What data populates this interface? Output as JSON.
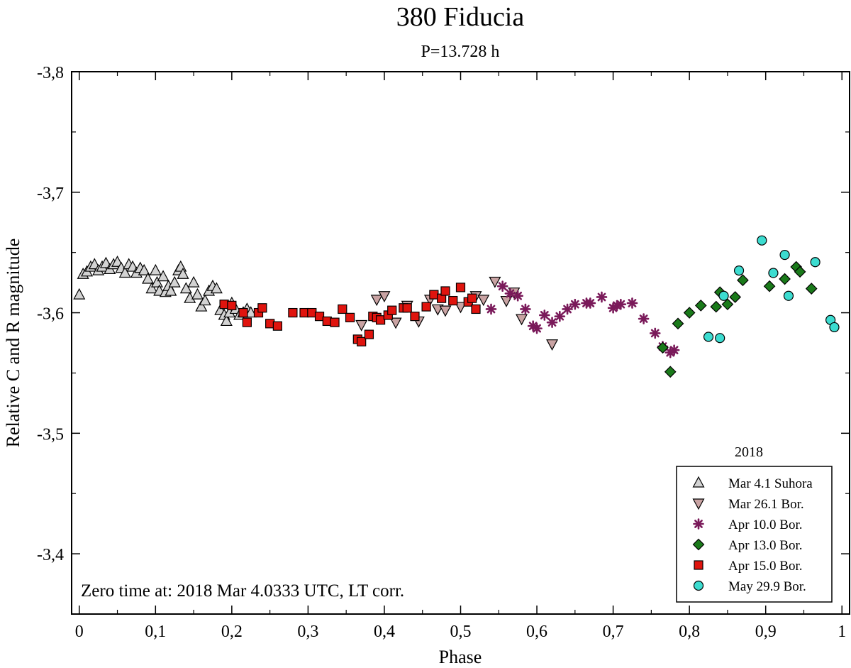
{
  "chart_data": {
    "type": "scatter",
    "title": "380 Fiducia",
    "subtitle": "P=13.728 h",
    "xlabel": "Phase",
    "ylabel": "Relative C and R magnitude",
    "xlim": [
      -0.01,
      1.01
    ],
    "ylim": [
      -3.35,
      -3.8
    ],
    "xticks": [
      0,
      0.1,
      0.2,
      0.3,
      0.4,
      0.5,
      0.6,
      0.7,
      0.8,
      0.9,
      1
    ],
    "xtick_labels": [
      "0",
      "0,1",
      "0,2",
      "0,3",
      "0,4",
      "0,5",
      "0,6",
      "0,7",
      "0,8",
      "0,9",
      "1"
    ],
    "yticks": [
      -3.8,
      -3.7,
      -3.5,
      -3.4
    ],
    "ytick_labels": [
      "-3,8",
      "-3,7",
      "-3,5",
      "-3,4"
    ],
    "ytick_special_label": "-3,6",
    "annotation": "Zero time at: 2018 Mar 4.0333 UTC, LT corr.",
    "legend_title": "2018",
    "legend_position": "bottom-right",
    "series": [
      {
        "name": "Mar 4.1 Suhora",
        "marker": "triangle-up",
        "color": "#d3d3d3",
        "x": [
          0.0,
          0.005,
          0.01,
          0.015,
          0.02,
          0.025,
          0.03,
          0.035,
          0.04,
          0.045,
          0.05,
          0.055,
          0.06,
          0.065,
          0.07,
          0.075,
          0.08,
          0.085,
          0.09,
          0.095,
          0.1,
          0.102,
          0.105,
          0.11,
          0.113,
          0.117,
          0.12,
          0.125,
          0.13,
          0.133,
          0.136,
          0.14,
          0.145,
          0.15,
          0.155,
          0.16,
          0.165,
          0.17,
          0.175,
          0.18,
          0.185,
          0.19,
          0.193,
          0.197,
          0.2,
          0.205,
          0.21,
          0.215,
          0.22,
          0.225
        ],
        "y": [
          -3.615,
          -3.632,
          -3.634,
          -3.638,
          -3.64,
          -3.635,
          -3.638,
          -3.641,
          -3.636,
          -3.64,
          -3.642,
          -3.637,
          -3.633,
          -3.64,
          -3.638,
          -3.633,
          -3.637,
          -3.635,
          -3.628,
          -3.62,
          -3.635,
          -3.625,
          -3.618,
          -3.63,
          -3.617,
          -3.622,
          -3.618,
          -3.625,
          -3.635,
          -3.638,
          -3.632,
          -3.62,
          -3.612,
          -3.625,
          -3.615,
          -3.605,
          -3.61,
          -3.618,
          -3.622,
          -3.62,
          -3.602,
          -3.598,
          -3.593,
          -3.6,
          -3.608,
          -3.603,
          -3.598,
          -3.6,
          -3.603,
          -3.6
        ]
      },
      {
        "name": "Mar 26.1 Bor.",
        "marker": "triangle-down",
        "color": "#c9a3a3",
        "x": [
          0.37,
          0.39,
          0.4,
          0.415,
          0.43,
          0.445,
          0.46,
          0.47,
          0.48,
          0.5,
          0.52,
          0.53,
          0.545,
          0.56,
          0.57,
          0.58,
          0.62
        ],
        "y": [
          -3.59,
          -3.611,
          -3.614,
          -3.592,
          -3.606,
          -3.593,
          -3.611,
          -3.603,
          -3.602,
          -3.605,
          -3.614,
          -3.611,
          -3.626,
          -3.61,
          -3.617,
          -3.595,
          -3.574
        ]
      },
      {
        "name": "Apr 10.0 Bor.",
        "marker": "star",
        "color": "#7a1a5a",
        "x": [
          0.54,
          0.555,
          0.565,
          0.575,
          0.585,
          0.595,
          0.6,
          0.61,
          0.62,
          0.63,
          0.64,
          0.65,
          0.665,
          0.67,
          0.685,
          0.7,
          0.705,
          0.71,
          0.725,
          0.74,
          0.755,
          0.765,
          0.775,
          0.78
        ],
        "y": [
          -3.603,
          -3.622,
          -3.616,
          -3.614,
          -3.603,
          -3.589,
          -3.587,
          -3.598,
          -3.592,
          -3.597,
          -3.603,
          -3.607,
          -3.608,
          -3.608,
          -3.613,
          -3.604,
          -3.606,
          -3.607,
          -3.608,
          -3.595,
          -3.583,
          -3.572,
          -3.567,
          -3.569
        ]
      },
      {
        "name": "Apr 13.0 Bor.",
        "marker": "diamond",
        "color": "#1a7a1a",
        "x": [
          0.765,
          0.775,
          0.785,
          0.8,
          0.815,
          0.835,
          0.84,
          0.85,
          0.86,
          0.87,
          0.905,
          0.925,
          0.94,
          0.945,
          0.96
        ],
        "y": [
          -3.571,
          -3.551,
          -3.591,
          -3.6,
          -3.606,
          -3.605,
          -3.617,
          -3.607,
          -3.613,
          -3.627,
          -3.622,
          -3.628,
          -3.638,
          -3.634,
          -3.62
        ]
      },
      {
        "name": "Apr 15.0 Bor.",
        "marker": "square",
        "color": "#e0140e",
        "x": [
          0.19,
          0.2,
          0.215,
          0.22,
          0.235,
          0.24,
          0.25,
          0.26,
          0.28,
          0.295,
          0.305,
          0.315,
          0.325,
          0.335,
          0.345,
          0.355,
          0.365,
          0.37,
          0.38,
          0.385,
          0.39,
          0.395,
          0.405,
          0.41,
          0.425,
          0.43,
          0.44,
          0.455,
          0.465,
          0.475,
          0.48,
          0.49,
          0.5,
          0.51,
          0.515,
          0.52
        ],
        "y": [
          -3.607,
          -3.606,
          -3.6,
          -3.592,
          -3.6,
          -3.604,
          -3.591,
          -3.589,
          -3.6,
          -3.6,
          -3.6,
          -3.597,
          -3.593,
          -3.592,
          -3.603,
          -3.596,
          -3.578,
          -3.576,
          -3.582,
          -3.597,
          -3.596,
          -3.594,
          -3.598,
          -3.602,
          -3.604,
          -3.604,
          -3.597,
          -3.605,
          -3.615,
          -3.612,
          -3.618,
          -3.61,
          -3.621,
          -3.609,
          -3.612,
          -3.603
        ]
      },
      {
        "name": "May 29.9 Bor.",
        "marker": "circle",
        "color": "#3cdcd0",
        "x": [
          0.825,
          0.84,
          0.845,
          0.865,
          0.895,
          0.91,
          0.925,
          0.93,
          0.965,
          0.985,
          0.99
        ],
        "y": [
          -3.58,
          -3.579,
          -3.614,
          -3.635,
          -3.66,
          -3.633,
          -3.648,
          -3.614,
          -3.642,
          -3.594,
          -3.588
        ]
      }
    ]
  }
}
